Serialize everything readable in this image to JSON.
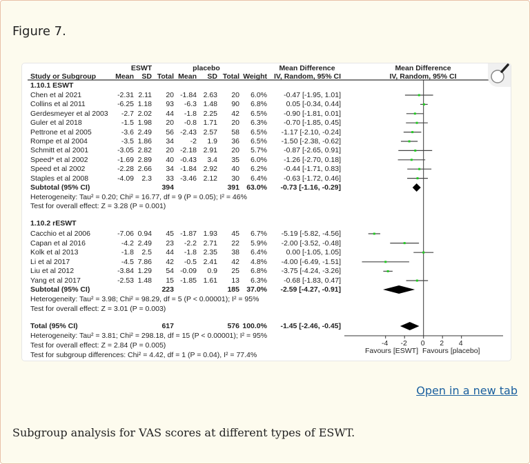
{
  "figure_label": "Figure 7.",
  "open_link": "Open in a new tab",
  "caption": "Subgroup analysis for VAS scores at different types of ESWT.",
  "colors": {
    "point": "#22cc22",
    "ci_line": "#444444",
    "diamond": "#000000",
    "link": "#1a5f9e",
    "background": "#fdfbee"
  },
  "icons": {
    "zoom": "magnifier-icon"
  },
  "chart_data": {
    "type": "forest",
    "headers": {
      "group1": "ESWT",
      "group2": "placebo",
      "md": "Mean Difference",
      "md_plot": "Mean Difference",
      "study": "Study or Subgroup",
      "mean1": "Mean",
      "sd1": "SD",
      "total1": "Total",
      "mean2": "Mean",
      "sd2": "SD",
      "total2": "Total",
      "weight": "Weight",
      "ci": "IV, Random, 95% CI",
      "ci_plot": "IV, Random, 95% CI"
    },
    "groups": [
      {
        "title": "1.10.1 ESWT",
        "studies": [
          {
            "name": "Chen et al 2021",
            "mean1": "-2.31",
            "sd1": "2.11",
            "total1": "20",
            "mean2": "-1.84",
            "sd2": "2.63",
            "total2": "20",
            "weight": "6.0%",
            "ci": "-0.47 [-1.95, 1.01]",
            "md": -0.47,
            "lo": -1.95,
            "hi": 1.01
          },
          {
            "name": "Collins et al 2011",
            "mean1": "-6.25",
            "sd1": "1.18",
            "total1": "93",
            "mean2": "-6.3",
            "sd2": "1.48",
            "total2": "90",
            "weight": "6.8%",
            "ci": "0.05 [-0.34, 0.44]",
            "md": 0.05,
            "lo": -0.34,
            "hi": 0.44
          },
          {
            "name": "Gerdesmeyer et al 2003",
            "mean1": "-2.7",
            "sd1": "2.02",
            "total1": "44",
            "mean2": "-1.8",
            "sd2": "2.25",
            "total2": "42",
            "weight": "6.5%",
            "ci": "-0.90 [-1.81, 0.01]",
            "md": -0.9,
            "lo": -1.81,
            "hi": 0.01
          },
          {
            "name": "Guler et al 2018",
            "mean1": "-1.5",
            "sd1": "1.98",
            "total1": "20",
            "mean2": "-0.8",
            "sd2": "1.71",
            "total2": "20",
            "weight": "6.3%",
            "ci": "-0.70 [-1.85, 0.45]",
            "md": -0.7,
            "lo": -1.85,
            "hi": 0.45
          },
          {
            "name": "Pettrone et al 2005",
            "mean1": "-3.6",
            "sd1": "2.49",
            "total1": "56",
            "mean2": "-2.43",
            "sd2": "2.57",
            "total2": "58",
            "weight": "6.5%",
            "ci": "-1.17 [-2.10, -0.24]",
            "md": -1.17,
            "lo": -2.1,
            "hi": -0.24
          },
          {
            "name": "Rompe et al 2004",
            "mean1": "-3.5",
            "sd1": "1.86",
            "total1": "34",
            "mean2": "-2",
            "sd2": "1.9",
            "total2": "36",
            "weight": "6.5%",
            "ci": "-1.50 [-2.38, -0.62]",
            "md": -1.5,
            "lo": -2.38,
            "hi": -0.62
          },
          {
            "name": "Schmitt et al 2001",
            "mean1": "-3.05",
            "sd1": "2.82",
            "total1": "20",
            "mean2": "-2.18",
            "sd2": "2.91",
            "total2": "20",
            "weight": "5.7%",
            "ci": "-0.87 [-2.65, 0.91]",
            "md": -0.87,
            "lo": -2.65,
            "hi": 0.91
          },
          {
            "name": "Speed* et al 2002",
            "mean1": "-1.69",
            "sd1": "2.89",
            "total1": "40",
            "mean2": "-0.43",
            "sd2": "3.4",
            "total2": "35",
            "weight": "6.0%",
            "ci": "-1.26 [-2.70, 0.18]",
            "md": -1.26,
            "lo": -2.7,
            "hi": 0.18
          },
          {
            "name": "Speed et al 2002",
            "mean1": "-2.28",
            "sd1": "2.66",
            "total1": "34",
            "mean2": "-1.84",
            "sd2": "2.92",
            "total2": "40",
            "weight": "6.2%",
            "ci": "-0.44 [-1.71, 0.83]",
            "md": -0.44,
            "lo": -1.71,
            "hi": 0.83
          },
          {
            "name": "Staples et al  2008",
            "mean1": "-4.09",
            "sd1": "2.3",
            "total1": "33",
            "mean2": "-3.46",
            "sd2": "2.12",
            "total2": "30",
            "weight": "6.4%",
            "ci": "-0.63 [-1.72, 0.46]",
            "md": -0.63,
            "lo": -1.72,
            "hi": 0.46
          }
        ],
        "subtotal": {
          "name": "Subtotal (95% CI)",
          "total1": "394",
          "total2": "391",
          "weight": "63.0%",
          "ci": "-0.73 [-1.16, -0.29]",
          "md": -0.73,
          "lo": -1.16,
          "hi": -0.29
        },
        "heterogeneity": "Heterogeneity: Tau² = 0.20; Chi² = 16.77, df = 9 (P = 0.05); I² = 46%",
        "overall": "Test for overall effect: Z = 3.28 (P = 0.001)"
      },
      {
        "title": "1.10.2 rESWT",
        "studies": [
          {
            "name": "Cacchio et al 2006",
            "mean1": "-7.06",
            "sd1": "0.94",
            "total1": "45",
            "mean2": "-1.87",
            "sd2": "1.93",
            "total2": "45",
            "weight": "6.7%",
            "ci": "-5.19 [-5.82, -4.56]",
            "md": -5.19,
            "lo": -5.82,
            "hi": -4.56
          },
          {
            "name": "Capan et al 2016",
            "mean1": "-4.2",
            "sd1": "2.49",
            "total1": "23",
            "mean2": "-2.2",
            "sd2": "2.71",
            "total2": "22",
            "weight": "5.9%",
            "ci": "-2.00 [-3.52, -0.48]",
            "md": -2.0,
            "lo": -3.52,
            "hi": -0.48
          },
          {
            "name": "Kolk et al 2013",
            "mean1": "-1.8",
            "sd1": "2.5",
            "total1": "44",
            "mean2": "-1.8",
            "sd2": "2.35",
            "total2": "38",
            "weight": "6.4%",
            "ci": "0.00 [-1.05, 1.05]",
            "md": 0.0,
            "lo": -1.05,
            "hi": 1.05
          },
          {
            "name": "Li et al 2017",
            "mean1": "-4.5",
            "sd1": "7.86",
            "total1": "42",
            "mean2": "-0.5",
            "sd2": "2.41",
            "total2": "42",
            "weight": "4.8%",
            "ci": "-4.00 [-6.49, -1.51]",
            "md": -4.0,
            "lo": -6.49,
            "hi": -1.51
          },
          {
            "name": "Liu et al 2012",
            "mean1": "-3.84",
            "sd1": "1.29",
            "total1": "54",
            "mean2": "-0.09",
            "sd2": "0.9",
            "total2": "25",
            "weight": "6.8%",
            "ci": "-3.75 [-4.24, -3.26]",
            "md": -3.75,
            "lo": -4.24,
            "hi": -3.26
          },
          {
            "name": "Yang et al 2017",
            "mean1": "-2.53",
            "sd1": "1.48",
            "total1": "15",
            "mean2": "-1.85",
            "sd2": "1.61",
            "total2": "13",
            "weight": "6.3%",
            "ci": "-0.68 [-1.83, 0.47]",
            "md": -0.68,
            "lo": -1.83,
            "hi": 0.47
          }
        ],
        "subtotal": {
          "name": "Subtotal (95% CI)",
          "total1": "223",
          "total2": "185",
          "weight": "37.0%",
          "ci": "-2.59 [-4.27, -0.91]",
          "md": -2.59,
          "lo": -4.27,
          "hi": -0.91
        },
        "heterogeneity": "Heterogeneity: Tau² = 3.98; Chi² = 98.29, df = 5 (P < 0.00001); I² = 95%",
        "overall": "Test for overall effect: Z = 3.01 (P = 0.003)"
      }
    ],
    "total": {
      "name": "Total (95% CI)",
      "total1": "617",
      "total2": "576",
      "weight": "100.0%",
      "ci": "-1.45 [-2.46, -0.45]",
      "md": -1.45,
      "lo": -2.46,
      "hi": -0.45
    },
    "total_heterogeneity": "Heterogeneity: Tau² = 3.81; Chi² = 298.18, df = 15 (P < 0.00001); I² = 95%",
    "total_overall": "Test for overall effect: Z = 2.84 (P = 0.005)",
    "subgroup_test": "Test for subgroup differences: Chi² = 4.42, df = 1 (P = 0.04), I² = 77.4%",
    "x_axis": {
      "ticks": [
        "-4",
        "-2",
        "0",
        "2",
        "4"
      ],
      "tick_values": [
        -4,
        -2,
        0,
        2,
        4
      ],
      "xlim": [
        -8.5,
        8.5
      ]
    },
    "favours_left": "Favours [ESWT]",
    "favours_right": "Favours [placebo]"
  }
}
